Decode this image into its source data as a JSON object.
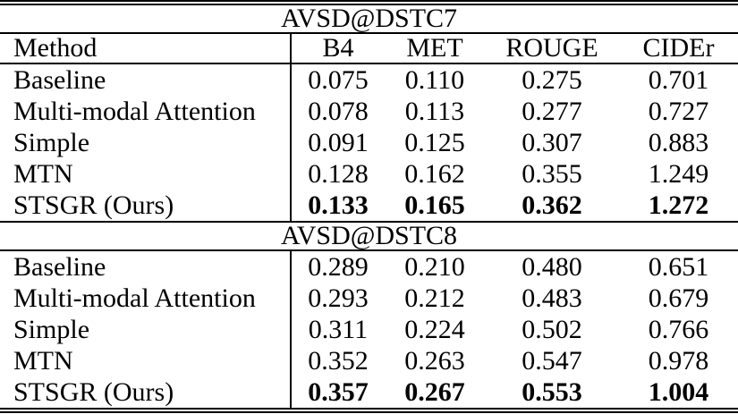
{
  "colors": {
    "text": "#000000",
    "background": "#ffffff",
    "rule": "#000000"
  },
  "table": {
    "header": [
      "Method",
      "B4",
      "MET",
      "ROUGE",
      "CIDEr"
    ],
    "sections": [
      {
        "title": "AVSD@DSTC7",
        "rows": [
          {
            "method": "Baseline",
            "values": [
              "0.075",
              "0.110",
              "0.275",
              "0.701"
            ],
            "bold": false
          },
          {
            "method": "Multi-modal Attention",
            "values": [
              "0.078",
              "0.113",
              "0.277",
              "0.727"
            ],
            "bold": false
          },
          {
            "method": "Simple",
            "values": [
              "0.091",
              "0.125",
              "0.307",
              "0.883"
            ],
            "bold": false
          },
          {
            "method": "MTN",
            "values": [
              "0.128",
              "0.162",
              "0.355",
              "1.249"
            ],
            "bold": false
          },
          {
            "method": "STSGR (Ours)",
            "values": [
              "0.133",
              "0.165",
              "0.362",
              "1.272"
            ],
            "bold": true
          }
        ]
      },
      {
        "title": "AVSD@DSTC8",
        "rows": [
          {
            "method": "Baseline",
            "values": [
              "0.289",
              "0.210",
              "0.480",
              "0.651"
            ],
            "bold": false
          },
          {
            "method": "Multi-modal Attention",
            "values": [
              "0.293",
              "0.212",
              "0.483",
              "0.679"
            ],
            "bold": false
          },
          {
            "method": "Simple",
            "values": [
              "0.311",
              "0.224",
              "0.502",
              "0.766"
            ],
            "bold": false
          },
          {
            "method": "MTN",
            "values": [
              "0.352",
              "0.263",
              "0.547",
              "0.978"
            ],
            "bold": false
          },
          {
            "method": "STSGR (Ours)",
            "values": [
              "0.357",
              "0.267",
              "0.553",
              "1.004"
            ],
            "bold": true
          }
        ]
      }
    ]
  }
}
